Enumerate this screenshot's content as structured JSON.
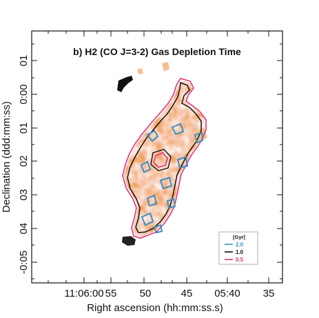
{
  "chart_data": {
    "type": "heatmap",
    "title": "b) H2 (CO J=3-2) Gas Depletion Time",
    "xlabel": "Right ascension (hh:mm:ss.s)",
    "ylabel": "Declination (ddd:mm:ss)",
    "x_ticks": [
      "11:06:00",
      "55",
      "50",
      "45",
      "05:40",
      "35"
    ],
    "y_ticks": [
      "01",
      "0:00",
      "01",
      "02",
      "03",
      "04",
      "-0:05"
    ],
    "colormap": "white-to-orange",
    "map_color": "#f0a060",
    "legend": {
      "title": "[Gyr]",
      "placement": "bottom-right",
      "entries": [
        {
          "label": "2.0",
          "color": "#3a8fbf"
        },
        {
          "label": "1.0",
          "color": "#111111"
        },
        {
          "label": "0.5",
          "color": "#e0307a"
        }
      ]
    },
    "contour_levels_gyr": [
      0.5,
      1.0,
      2.0
    ]
  }
}
